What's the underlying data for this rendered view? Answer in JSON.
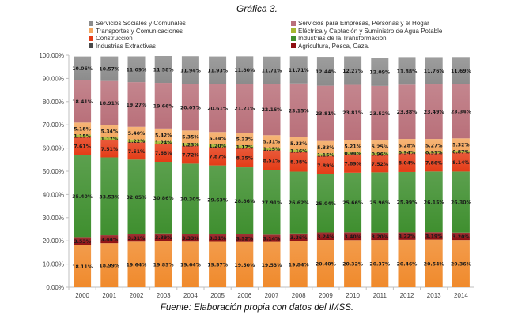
{
  "chart_data": {
    "type": "bar",
    "stacked": true,
    "percent": true,
    "title": "Gráfica 3.",
    "source": "Fuente: Elaboración propia con datos del IMSS.",
    "xlabel": "",
    "ylabel": "",
    "ylim": [
      0,
      100
    ],
    "yticks": [
      "0.00%",
      "10.00%",
      "20.00%",
      "30.00%",
      "40.00%",
      "50.00%",
      "60.00%",
      "70.00%",
      "80.00%",
      "90.00%",
      "100.00%"
    ],
    "grid": false,
    "legend_position": "top",
    "categories": [
      "2000",
      "2001",
      "2002",
      "2003",
      "2004",
      "2005",
      "2006",
      "2007",
      "2008",
      "2009",
      "2010",
      "2011",
      "2012",
      "2013",
      "2014"
    ],
    "legend_left": [
      {
        "name": "Servicios Sociales y Comunales",
        "color": "#8c8c8c"
      },
      {
        "name": "Transportes y Comunicaciones",
        "color": "#f4a860"
      },
      {
        "name": "Construcción",
        "color": "#e43c17"
      },
      {
        "name": "Industrias Extractivas",
        "color": "#4a4a4a"
      }
    ],
    "legend_right": [
      {
        "name": "Servicios para Empresas, Personas y el Hogar",
        "color": "#b9707a"
      },
      {
        "name": "Eléctrica y Captación y Suministro de Agua Potable",
        "color": "#a6b832"
      },
      {
        "name": "Industrias de la Transformación",
        "color": "#3f8f2f"
      },
      {
        "name": "Agricultura, Pesca, Caza.",
        "color": "#8e0f12"
      }
    ],
    "series": [
      {
        "name": "",
        "color": "#f08a2c",
        "values": [
          18.11,
          18.99,
          19.64,
          19.83,
          19.64,
          19.57,
          19.5,
          19.53,
          19.84,
          20.4,
          20.32,
          20.37,
          20.46,
          20.54,
          20.36
        ]
      },
      {
        "name": "Agricultura, Pesca, Caza.",
        "color": "#8e0f12",
        "values": [
          3.53,
          3.44,
          3.31,
          3.39,
          3.33,
          3.31,
          3.32,
          3.14,
          3.36,
          3.24,
          3.4,
          3.2,
          3.22,
          3.19,
          3.2
        ]
      },
      {
        "name": "Industrias de la Transformación",
        "color": "#3f8f2f",
        "values": [
          35.4,
          33.53,
          32.05,
          30.86,
          30.3,
          29.63,
          28.86,
          27.91,
          26.62,
          25.04,
          25.66,
          25.96,
          25.99,
          26.15,
          26.3
        ]
      },
      {
        "name": "Construcción",
        "color": "#e43c17",
        "values": [
          7.61,
          7.51,
          7.51,
          7.68,
          7.72,
          7.87,
          8.35,
          8.51,
          8.38,
          7.89,
          7.89,
          7.52,
          8.04,
          7.86,
          8.14
        ]
      },
      {
        "name": "Eléctrica y Captación y Suministro de Agua Potable",
        "color": "#a6b832",
        "values": [
          1.15,
          1.17,
          1.22,
          1.24,
          1.23,
          1.2,
          1.17,
          1.15,
          1.16,
          1.15,
          0.94,
          0.96,
          0.94,
          0.91,
          0.87
        ]
      },
      {
        "name": "Transportes y Comunicaciones",
        "color": "#f4a860",
        "values": [
          5.18,
          5.34,
          5.4,
          5.42,
          5.35,
          5.34,
          5.33,
          5.31,
          5.33,
          5.33,
          5.21,
          5.25,
          5.28,
          5.27,
          5.32
        ]
      },
      {
        "name": "Servicios para Empresas, Personas y el Hogar",
        "color": "#b9707a",
        "values": [
          18.41,
          18.91,
          19.27,
          19.66,
          20.07,
          20.61,
          21.21,
          22.16,
          23.15,
          23.81,
          23.81,
          23.52,
          23.38,
          23.49,
          23.34
        ]
      },
      {
        "name": "Servicios Sociales y Comunales",
        "color": "#8c8c8c",
        "values": [
          10.06,
          10.57,
          11.09,
          11.58,
          11.94,
          11.93,
          11.8,
          11.71,
          11.71,
          12.44,
          12.27,
          12.09,
          11.88,
          11.76,
          11.69
        ]
      }
    ]
  }
}
